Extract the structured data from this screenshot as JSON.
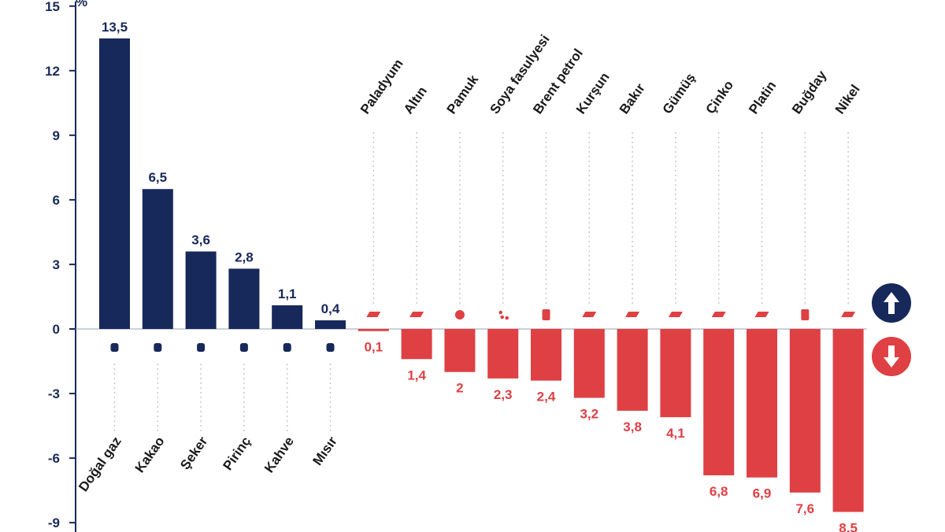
{
  "chart_data": {
    "type": "bar",
    "y_unit": "%",
    "ylim": [
      -9,
      15
    ],
    "yticks": [
      "15",
      "12",
      "9",
      "6",
      "3",
      "0",
      "-3",
      "-6",
      "-9"
    ],
    "grid": false,
    "categories": [
      "Doğal gaz",
      "Kakao",
      "Şeker",
      "Pirinç",
      "Kahve",
      "Mısır",
      "Paladyum",
      "Altın",
      "Pamuk",
      "Soya fasulyesi",
      "Brent petrol",
      "Kurşun",
      "Bakır",
      "Gümüş",
      "Çinko",
      "Platin",
      "Buğday",
      "Nikel"
    ],
    "values": [
      13.5,
      6.5,
      3.6,
      2.8,
      1.1,
      0.4,
      -0.1,
      -1.4,
      -2,
      -2.3,
      -2.4,
      -3.2,
      -3.8,
      -4.1,
      -6.8,
      -6.9,
      -7.6,
      -8.5
    ],
    "value_labels": [
      "13,5",
      "6,5",
      "3,6",
      "2,8",
      "1,1",
      "0,4",
      "0,1",
      "1,4",
      "2",
      "2,3",
      "2,4",
      "3,2",
      "3,8",
      "4,1",
      "6,8",
      "6,9",
      "7,6",
      "8,5"
    ],
    "icons": [
      "flame-icon",
      "cocoa-icon",
      "sugar-icon",
      "rice-icon",
      "coffee-icon",
      "corn-icon",
      "metal-bar-icon",
      "metal-bar-icon",
      "cotton-icon",
      "soybean-icon",
      "oil-barrel-icon",
      "metal-bar-icon",
      "metal-bar-icon",
      "metal-bar-icon",
      "metal-bar-icon",
      "metal-bar-icon",
      "wheat-icon",
      "metal-bar-icon"
    ],
    "colors": {
      "positive": "#17285a",
      "negative": "#de4044",
      "axis": "#1a2a5a",
      "guide": "#c8c8c8"
    },
    "legend": {
      "up_icon": "arrow-up-icon",
      "down_icon": "arrow-down-icon"
    }
  }
}
